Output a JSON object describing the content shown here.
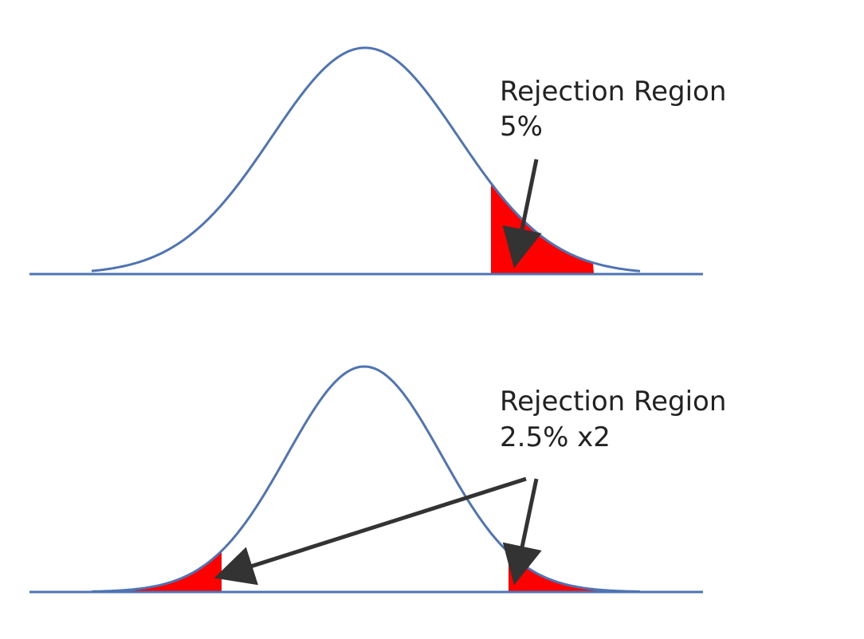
{
  "diagrams": [
    {
      "id": "one-tailed",
      "label_line1": "Rejection Region",
      "label_line2": "5%",
      "tails": [
        "right"
      ]
    },
    {
      "id": "two-tailed",
      "label_line1": "Rejection Region",
      "label_line2": "2.5% x2",
      "tails": [
        "left",
        "right"
      ]
    }
  ],
  "colors": {
    "curve": "#4f74b4",
    "baseline": "#4f74b4",
    "rejection_fill": "#ff0000",
    "arrow": "#333333",
    "text": "#222222"
  }
}
